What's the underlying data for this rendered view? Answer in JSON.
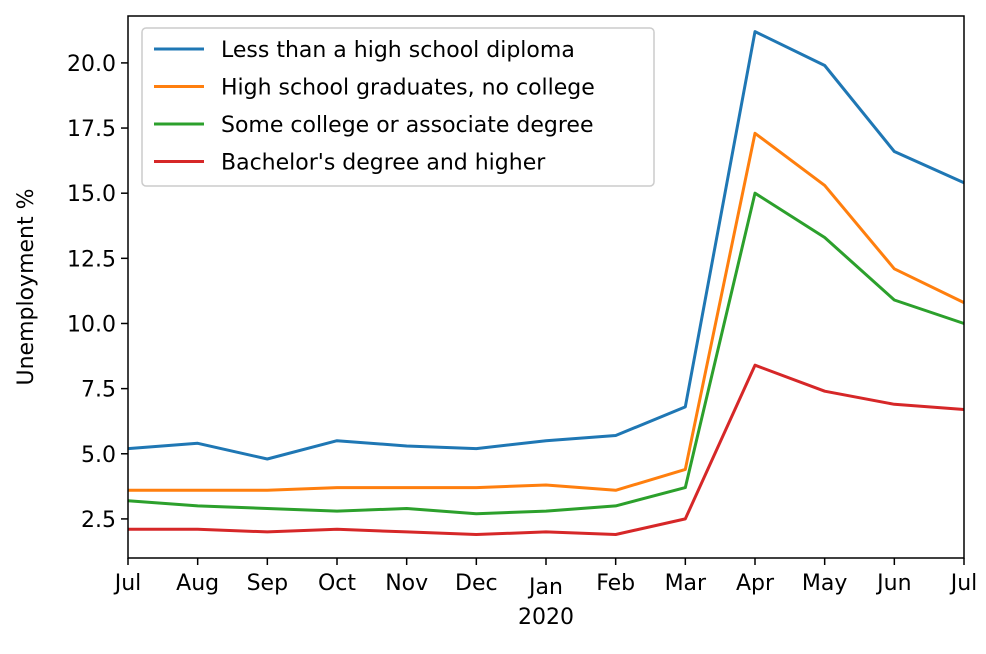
{
  "chart_data": {
    "type": "line",
    "title": "",
    "xlabel": "",
    "ylabel": "Unemployment %",
    "x": [
      "Jul",
      "Aug",
      "Sep",
      "Oct",
      "Nov",
      "Dec",
      "Jan",
      "Feb",
      "Mar",
      "Apr",
      "May",
      "Jun",
      "Jul"
    ],
    "x_sublabel": {
      "category": "Jan",
      "text": "2020"
    },
    "y_ticks": [
      "2.5",
      "5.0",
      "7.5",
      "10.0",
      "12.5",
      "15.0",
      "17.5",
      "20.0"
    ],
    "ylim": [
      1.0,
      21.8
    ],
    "grid": false,
    "legend_position": "top-left",
    "series": [
      {
        "name": "Less than a high school diploma",
        "color": "#1f77b4",
        "values": [
          5.2,
          5.4,
          4.8,
          5.5,
          5.3,
          5.2,
          5.5,
          5.7,
          6.8,
          21.2,
          19.9,
          16.6,
          15.4
        ]
      },
      {
        "name": "High school graduates, no college",
        "color": "#ff7f0e",
        "values": [
          3.6,
          3.6,
          3.6,
          3.7,
          3.7,
          3.7,
          3.8,
          3.6,
          4.4,
          17.3,
          15.3,
          12.1,
          10.8
        ]
      },
      {
        "name": "Some college or associate degree",
        "color": "#2ca02c",
        "values": [
          3.2,
          3.0,
          2.9,
          2.8,
          2.9,
          2.7,
          2.8,
          3.0,
          3.7,
          15.0,
          13.3,
          10.9,
          10.0
        ]
      },
      {
        "name": "Bachelor's degree and higher",
        "color": "#d62728",
        "values": [
          2.1,
          2.1,
          2.0,
          2.1,
          2.0,
          1.9,
          2.0,
          1.9,
          2.5,
          8.4,
          7.4,
          6.9,
          6.7
        ]
      }
    ]
  }
}
